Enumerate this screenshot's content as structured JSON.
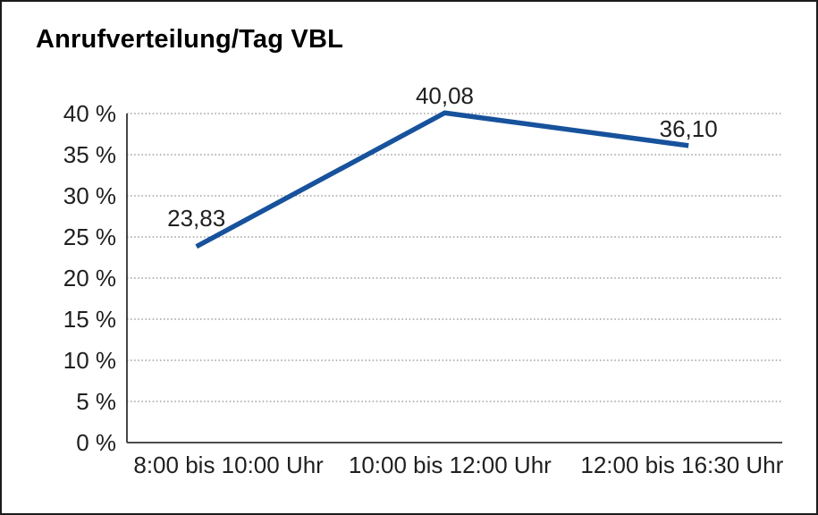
{
  "chart_data": {
    "type": "line",
    "title": "Anrufverteilung/Tag VBL",
    "categories": [
      "8:00 bis 10:00 Uhr",
      "10:00 bis 12:00 Uhr",
      "12:00 bis 16:30 Uhr"
    ],
    "values": [
      23.83,
      40.08,
      36.1
    ],
    "data_labels": [
      "23,83",
      "40,08",
      "36,10"
    ],
    "xlabel": "",
    "ylabel": "",
    "ylim": [
      0,
      40
    ],
    "y_tick_step": 5,
    "y_tick_labels": [
      "0 %",
      "5 %",
      "10 %",
      "15 %",
      "20 %",
      "25 %",
      "30 %",
      "35 %",
      "40 %"
    ],
    "grid": "horizontal-dotted",
    "legend": "none",
    "colors": {
      "line": "#17529c",
      "text": "#1f1f1f",
      "title": "#000000",
      "grid": "#8a8a8a",
      "y_axis": "#333333",
      "x_axis": "#4d4d4d",
      "frame_border": "#1b1b1b",
      "background": "#ffffff"
    }
  }
}
